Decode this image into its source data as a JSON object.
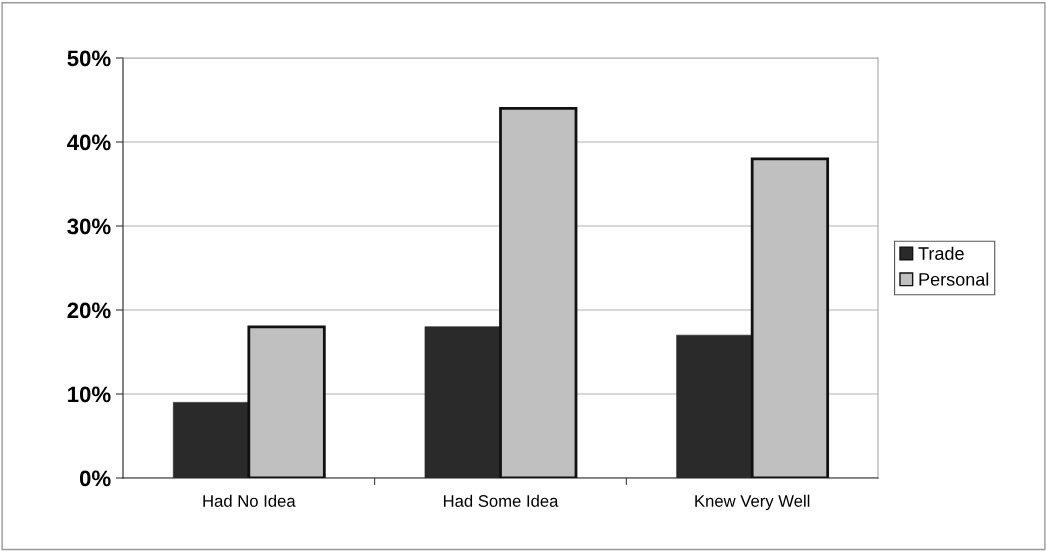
{
  "chart_data": {
    "type": "bar",
    "categories": [
      "Had No Idea",
      "Had Some Idea",
      "Knew Very Well"
    ],
    "series": [
      {
        "name": "Trade",
        "color": "#2a2a2a",
        "values": [
          9,
          18,
          17
        ]
      },
      {
        "name": "Personal",
        "color": "#c0c0c0",
        "values": [
          18,
          44,
          38
        ]
      }
    ],
    "ylim": [
      0,
      50
    ],
    "yticks": [
      {
        "value": 0,
        "label": "0%"
      },
      {
        "value": 10,
        "label": "10%"
      },
      {
        "value": 20,
        "label": "20%"
      },
      {
        "value": 30,
        "label": "30%"
      },
      {
        "value": 40,
        "label": "40%"
      },
      {
        "value": 50,
        "label": "50%"
      }
    ],
    "grid": "y",
    "legend": "right"
  }
}
